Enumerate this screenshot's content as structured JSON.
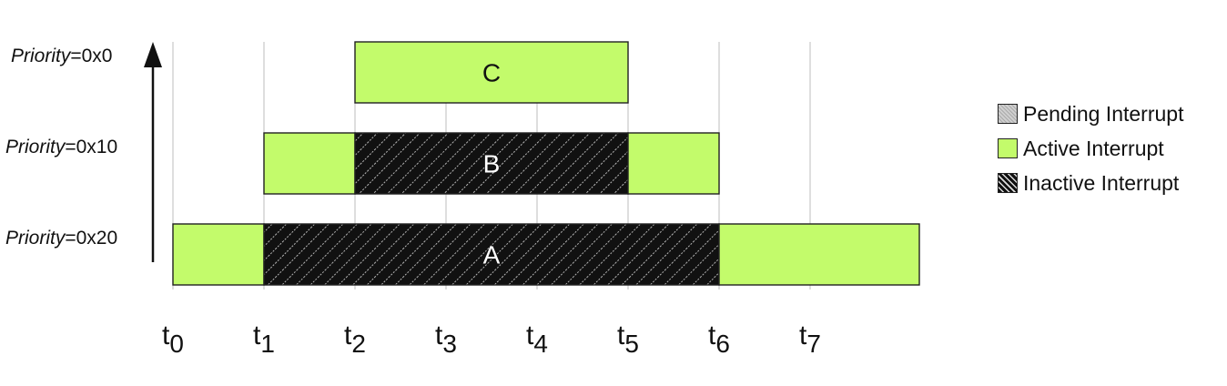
{
  "priorities": [
    {
      "prefix": "Priority",
      "value": "=0x0"
    },
    {
      "prefix": "Priority",
      "value": "=0x10"
    },
    {
      "prefix": "Priority",
      "value": "=0x20"
    }
  ],
  "time_ticks": [
    {
      "base": "t",
      "sub": "0"
    },
    {
      "base": "t",
      "sub": "1"
    },
    {
      "base": "t",
      "sub": "2"
    },
    {
      "base": "t",
      "sub": "3"
    },
    {
      "base": "t",
      "sub": "4"
    },
    {
      "base": "t",
      "sub": "5"
    },
    {
      "base": "t",
      "sub": "6"
    },
    {
      "base": "t",
      "sub": "7"
    }
  ],
  "bars": [
    {
      "label": "C",
      "row": 0,
      "segments": [
        {
          "from": 2,
          "to": 5,
          "state": "active"
        }
      ]
    },
    {
      "label": "B",
      "row": 1,
      "segments": [
        {
          "from": 1,
          "to": 2,
          "state": "active"
        },
        {
          "from": 2,
          "to": 5,
          "state": "inactive"
        },
        {
          "from": 5,
          "to": 6,
          "state": "active"
        }
      ]
    },
    {
      "label": "A",
      "row": 2,
      "segments": [
        {
          "from": 0,
          "to": 1,
          "state": "active"
        },
        {
          "from": 1,
          "to": 6,
          "state": "inactive"
        },
        {
          "from": 6,
          "to": 8.2,
          "state": "active"
        }
      ]
    }
  ],
  "legend": [
    {
      "label": "Pending Interrupt",
      "state": "pending"
    },
    {
      "label": "Active Interrupt",
      "state": "active"
    },
    {
      "label": "Inactive Interrupt",
      "state": "inactive"
    }
  ],
  "colors": {
    "active": "#c3fb6b",
    "inactive": "#111111",
    "pending": "#b5b5b5",
    "gridline": "#c8c8c8"
  }
}
